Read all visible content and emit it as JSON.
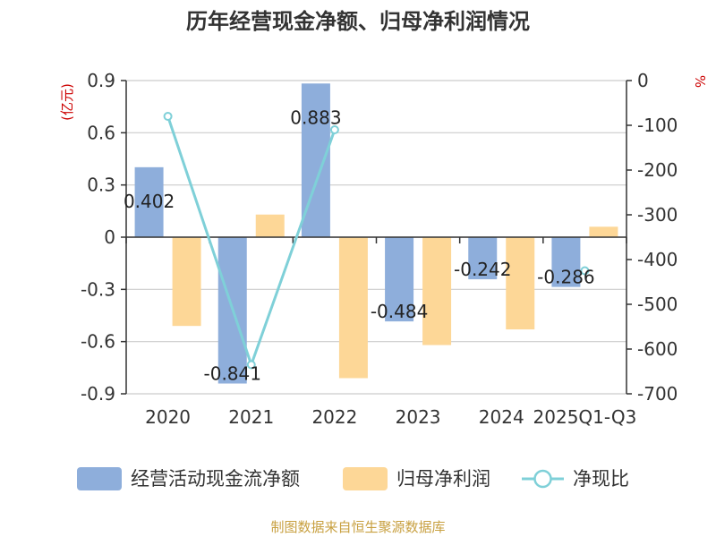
{
  "chart_data": {
    "type": "bar",
    "title": "历年经营现金净额、归母净利润情况",
    "categories": [
      "2020",
      "2021",
      "2022",
      "2023",
      "2024",
      "2025Q1-Q3"
    ],
    "series": [
      {
        "name": "经营活动现金流净额",
        "type": "bar",
        "axis": "left",
        "color": "#8eaedb",
        "values": [
          0.402,
          -0.841,
          0.883,
          -0.484,
          -0.242,
          -0.286
        ],
        "labels": [
          "0.402",
          "-0.841",
          "0.883",
          "-0.484",
          "-0.242",
          "-0.286"
        ]
      },
      {
        "name": "归母净利润",
        "type": "bar",
        "axis": "left",
        "color": "#fdd797",
        "values": [
          -0.51,
          0.13,
          -0.81,
          -0.62,
          -0.53,
          0.06
        ]
      },
      {
        "name": "净现比",
        "type": "line",
        "axis": "right",
        "color": "#7fd0d8",
        "values": [
          -80,
          -635,
          -110,
          null,
          null,
          -425
        ]
      }
    ],
    "left_axis": {
      "unit": "(亿元)",
      "range": [
        -0.9,
        0.9
      ],
      "ticks": [
        0.9,
        0.6,
        0.3,
        0,
        -0.3,
        -0.6,
        -0.9
      ],
      "tick_labels": [
        "0.9",
        "0.6",
        "0.3",
        "0",
        "-0.3",
        "-0.6",
        "-0.9"
      ]
    },
    "right_axis": {
      "unit": "%",
      "range": [
        -700,
        0
      ],
      "ticks": [
        0,
        -100,
        -200,
        -300,
        -400,
        -500,
        -600,
        -700
      ],
      "tick_labels": [
        "0",
        "-100",
        "-200",
        "-300",
        "-400",
        "-500",
        "-600",
        "-700"
      ]
    },
    "legend_position": "bottom",
    "grid": true
  },
  "colors": {
    "unit_label": "#cc0000",
    "source": "#c8a040",
    "axis": "#333333",
    "grid": "#cccccc"
  },
  "source": "制图数据来自恒生聚源数据库"
}
